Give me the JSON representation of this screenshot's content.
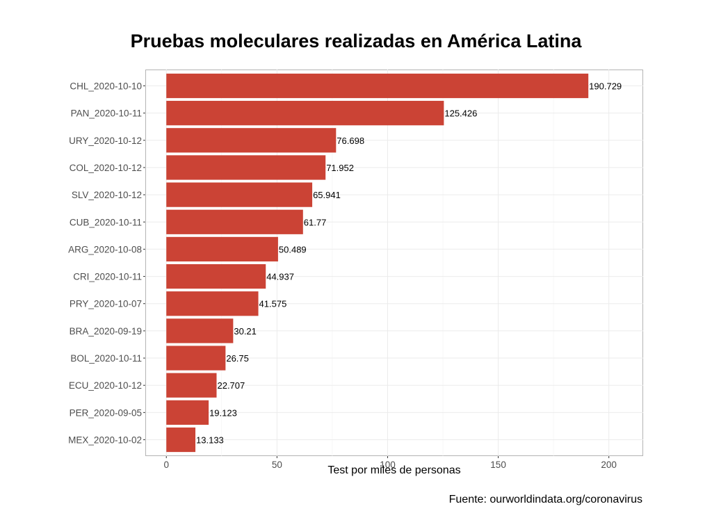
{
  "chart_data": {
    "type": "bar",
    "orientation": "horizontal",
    "title": "Pruebas moleculares realizadas en América Latina",
    "xlabel": "Test por miles de personas",
    "ylabel": "",
    "caption": "Fuente: ourworldindata.org/coronavirus",
    "categories": [
      "CHL_2020-10-10",
      "PAN_2020-10-11",
      "URY_2020-10-12",
      "COL_2020-10-12",
      "SLV_2020-10-12",
      "CUB_2020-10-11",
      "ARG_2020-10-08",
      "CRI_2020-10-11",
      "PRY_2020-10-07",
      "BRA_2020-09-19",
      "BOL_2020-10-11",
      "ECU_2020-10-12",
      "PER_2020-09-05",
      "MEX_2020-10-02"
    ],
    "values": [
      190.729,
      125.426,
      76.698,
      71.952,
      65.941,
      61.77,
      50.489,
      44.937,
      41.575,
      30.21,
      26.75,
      22.707,
      19.123,
      13.133
    ],
    "value_labels": [
      "190.729",
      "125.426",
      "76.698",
      "71.952",
      "65.941",
      "61.77",
      "50.489",
      "44.937",
      "41.575",
      "30.21",
      "26.75",
      "22.707",
      "19.123",
      "13.133"
    ],
    "xticks": [
      "0",
      "50",
      "100",
      "150",
      "200"
    ],
    "xlim": [
      -9.5,
      215.5
    ],
    "bar_color": "#cb4335",
    "grid": true
  }
}
